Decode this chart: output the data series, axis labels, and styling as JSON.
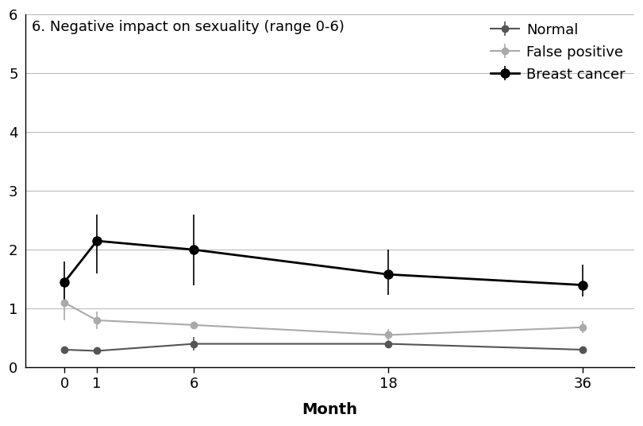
{
  "title": "6. Negative impact on sexuality (range 0-6)",
  "xlabel": "Month",
  "ylabel": "",
  "xlim": [
    -0.3,
    4.4
  ],
  "ylim": [
    0,
    6
  ],
  "yticks": [
    0,
    1,
    2,
    3,
    4,
    5,
    6
  ],
  "x_plot": [
    0,
    0.25,
    1.0,
    2.5,
    4.0
  ],
  "x_tick_positions": [
    0,
    0.25,
    1.0,
    2.5,
    4.0
  ],
  "x_tick_labels": [
    "0",
    "1",
    "6",
    "18",
    "36"
  ],
  "series": [
    {
      "label": "Normal",
      "color": "#555555",
      "linewidth": 1.5,
      "markersize": 6,
      "y": [
        0.3,
        0.28,
        0.4,
        0.4,
        0.3
      ],
      "yerr_low": [
        0.0,
        0.0,
        0.12,
        0.0,
        0.0
      ],
      "yerr_high": [
        0.0,
        0.0,
        0.12,
        0.0,
        0.0
      ]
    },
    {
      "label": "False positive",
      "color": "#aaaaaa",
      "linewidth": 1.5,
      "markersize": 6,
      "y": [
        1.1,
        0.8,
        0.72,
        0.55,
        0.68
      ],
      "yerr_low": [
        0.3,
        0.15,
        0.0,
        0.1,
        0.1
      ],
      "yerr_high": [
        0.3,
        0.15,
        0.0,
        0.1,
        0.1
      ]
    },
    {
      "label": "Breast cancer",
      "color": "#000000",
      "linewidth": 2.0,
      "markersize": 8,
      "y": [
        1.45,
        2.15,
        2.0,
        1.58,
        1.4
      ],
      "yerr_low": [
        0.35,
        0.55,
        0.6,
        0.35,
        0.2
      ],
      "yerr_high": [
        0.35,
        0.45,
        0.6,
        0.42,
        0.35
      ]
    }
  ],
  "background_color": "#ffffff"
}
